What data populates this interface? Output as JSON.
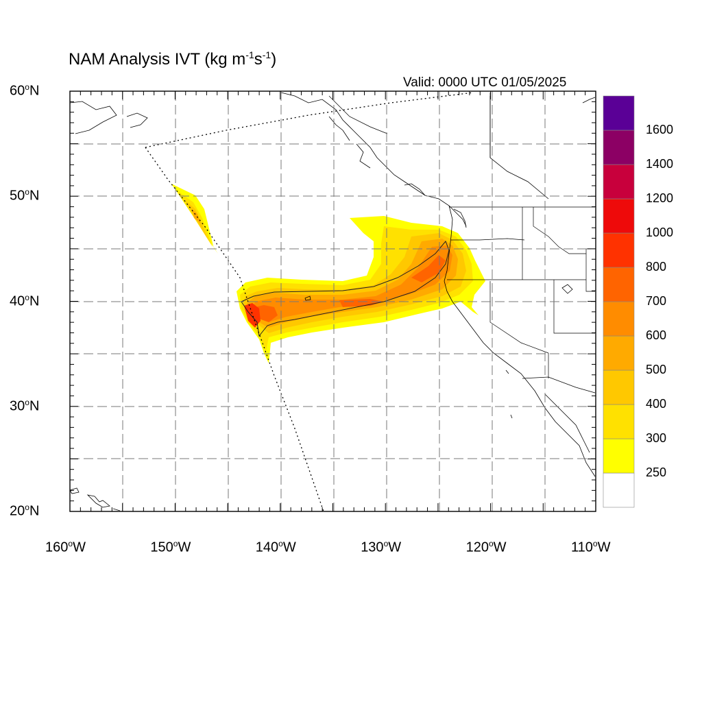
{
  "title": {
    "main": "NAM Analysis IVT (kg m",
    "exp1": "-1",
    "mid": "s",
    "exp2": "-1",
    "end": ")"
  },
  "valid_time": "Valid: 0000 UTC 01/05/2025",
  "map": {
    "lat_range": [
      20,
      60
    ],
    "lon_range": [
      -160,
      -110
    ],
    "lat_ticks": [
      {
        "num": "60",
        "hem": "N"
      },
      {
        "num": "50",
        "hem": "N"
      },
      {
        "num": "40",
        "hem": "N"
      },
      {
        "num": "30",
        "hem": "N"
      },
      {
        "num": "20",
        "hem": "N"
      }
    ],
    "lon_ticks": [
      {
        "num": "160",
        "hem": "W"
      },
      {
        "num": "150",
        "hem": "W"
      },
      {
        "num": "140",
        "hem": "W"
      },
      {
        "num": "130",
        "hem": "W"
      },
      {
        "num": "120",
        "hem": "W"
      },
      {
        "num": "110",
        "hem": "W"
      }
    ],
    "grid": "dashed, every 5 degrees",
    "field": "Integrated Vapor Transport"
  },
  "colorbar": {
    "levels": [
      "250",
      "300",
      "400",
      "500",
      "600",
      "700",
      "800",
      "1000",
      "1200",
      "1400",
      "1600"
    ],
    "colors": [
      "#ffffff",
      "#ffff00",
      "#ffe100",
      "#ffc800",
      "#ffaa00",
      "#ff8c00",
      "#ff6400",
      "#ff3200",
      "#ee0a0a",
      "#c8003c",
      "#8c0064",
      "#5a0096"
    ]
  }
}
